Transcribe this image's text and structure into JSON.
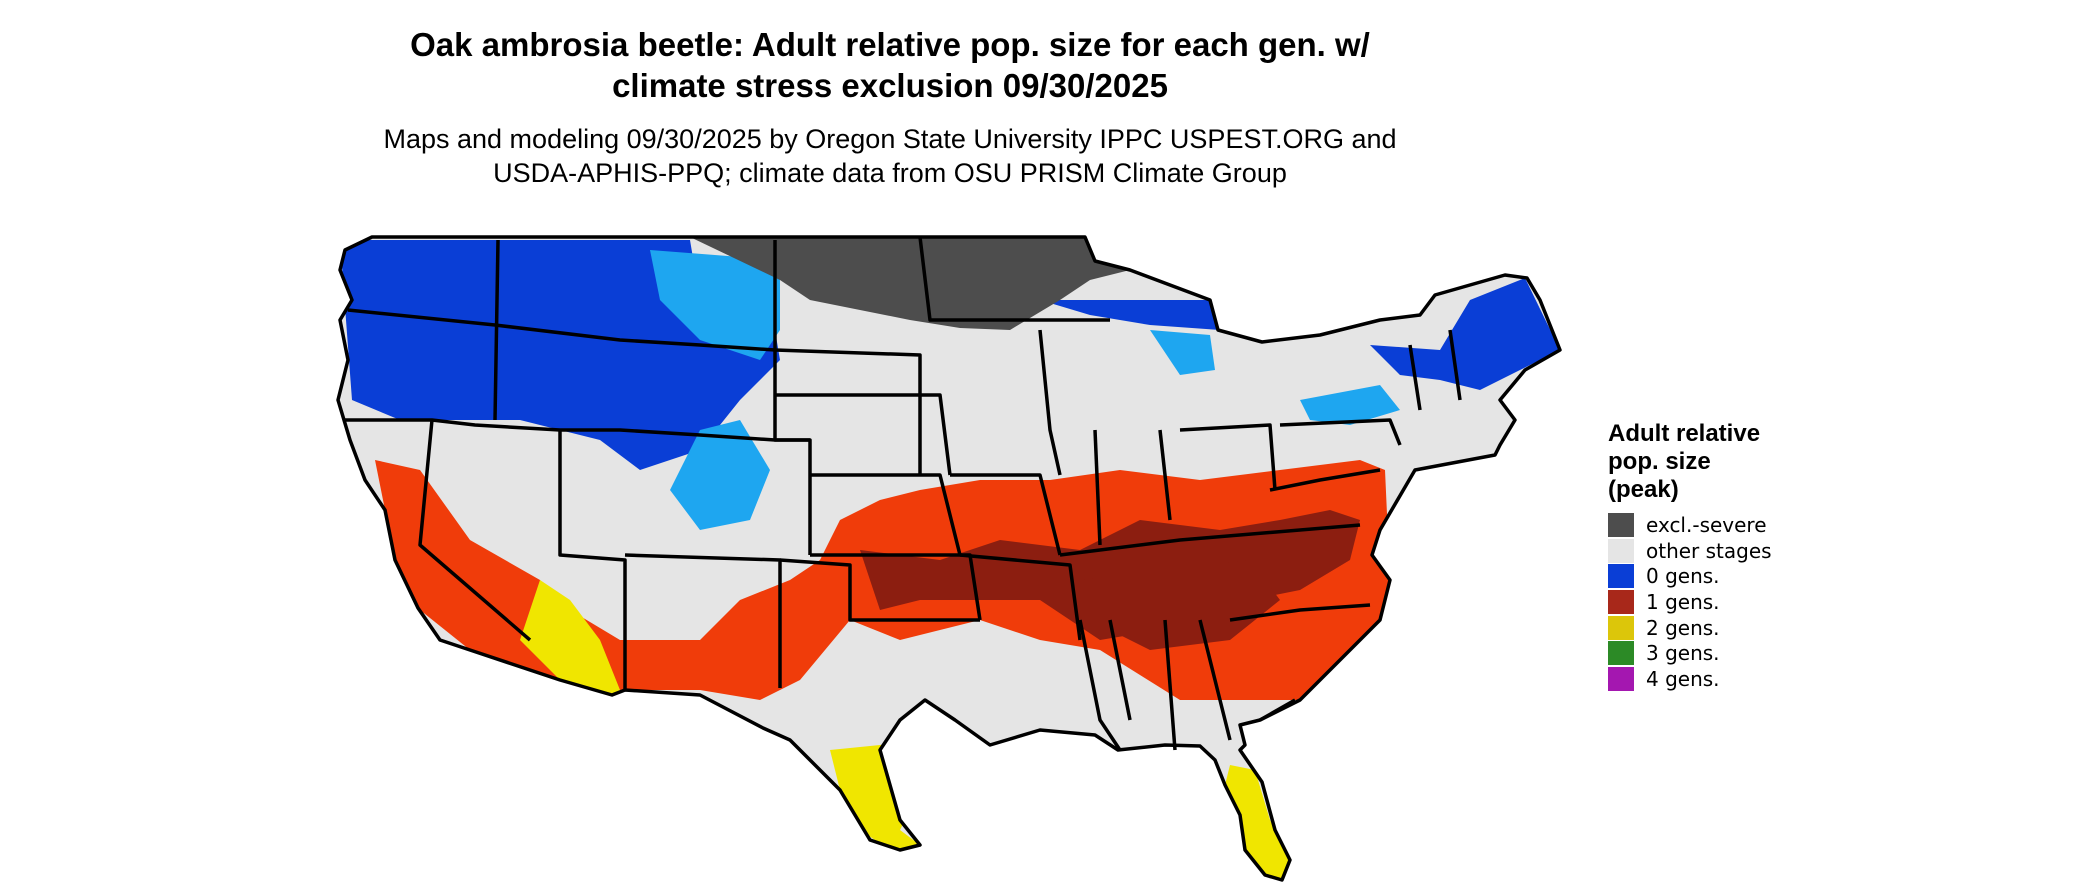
{
  "title": {
    "line1": "Oak ambrosia beetle: Adult relative pop. size for each gen. w/",
    "line2": "climate stress exclusion 09/30/2025"
  },
  "subtitle": {
    "line1": "Maps and modeling 09/30/2025 by Oregon State University IPPC USPEST.ORG and",
    "line2": "USDA-APHIS-PPQ; climate data from OSU PRISM Climate Group"
  },
  "legend": {
    "title_lines": [
      "Adult relative",
      "pop. size",
      "(peak)"
    ],
    "items": [
      {
        "label": "excl.-severe",
        "color": "#4d4d4d"
      },
      {
        "label": "other stages",
        "color": "#e5e5e5"
      },
      {
        "label": "0 gens.",
        "color": "#0a3ed6"
      },
      {
        "label": "1 gens.",
        "color": "#a8281a"
      },
      {
        "label": "2 gens.",
        "color": "#dcc60a"
      },
      {
        "label": "3 gens.",
        "color": "#2c8a26"
      },
      {
        "label": "4 gens.",
        "color": "#a417b0"
      }
    ]
  },
  "colors": {
    "light_blue": "#1ea6f0",
    "orange_red": "#f03c0a",
    "dark_red": "#8c1e10",
    "yellow": "#f0e600",
    "state_border": "#000000"
  }
}
